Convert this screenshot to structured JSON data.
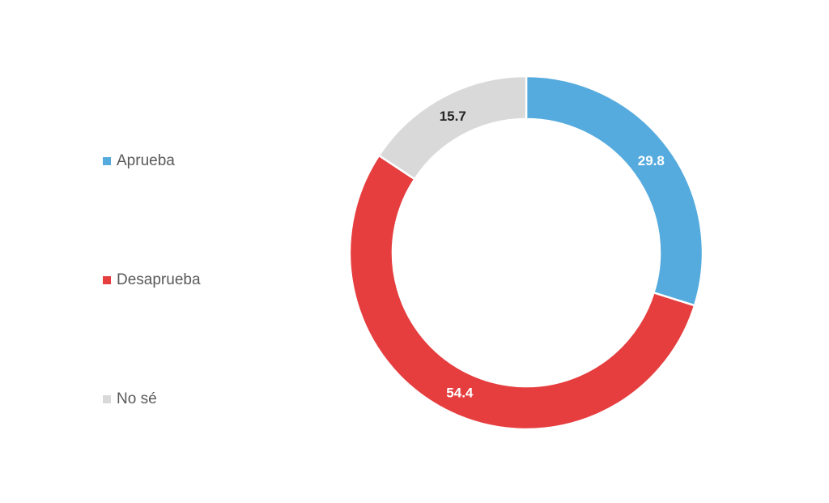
{
  "chart_data": {
    "type": "pie",
    "variant": "donut",
    "categories": [
      "Aprueba",
      "Desaprueba",
      "No sé"
    ],
    "values": [
      29.8,
      54.4,
      15.7
    ],
    "colors": [
      "#55ABDE",
      "#E63E3F",
      "#D9D9D9"
    ],
    "label_colors": [
      "#FFFFFF",
      "#FFFFFF",
      "#262626"
    ],
    "data_labels": [
      "29.8",
      "54.4",
      "15.7"
    ],
    "legend_position": "left",
    "start_angle": "12 o'clock, clockwise"
  }
}
